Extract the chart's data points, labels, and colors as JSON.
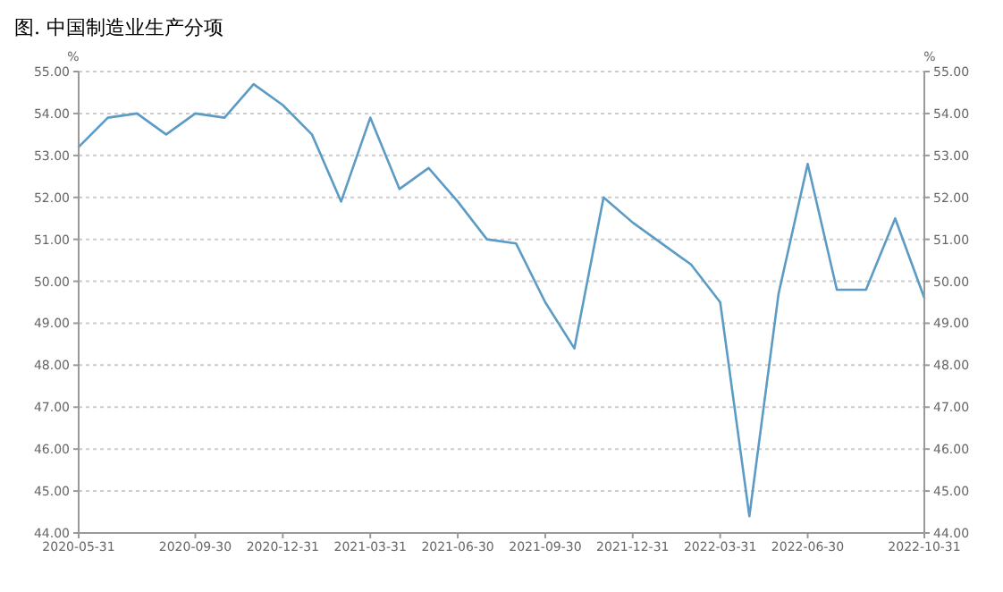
{
  "chart_data": {
    "type": "line",
    "title": "图. 中国制造业生产分项",
    "ylabel": "%",
    "y2label": "%",
    "categories": [
      "2020-05-31",
      null,
      null,
      null,
      "2020-09-30",
      null,
      null,
      "2020-12-31",
      null,
      null,
      "2021-03-31",
      null,
      null,
      "2021-06-30",
      null,
      null,
      "2021-09-30",
      null,
      null,
      "2021-12-31",
      null,
      null,
      "2022-03-31",
      null,
      null,
      "2022-06-30",
      null,
      null,
      null,
      "2022-10-31"
    ],
    "series": [
      {
        "color": "#5b9bc4",
        "values": [
          53.2,
          53.9,
          54.0,
          53.5,
          54.0,
          53.9,
          54.7,
          54.2,
          53.5,
          51.9,
          53.9,
          52.2,
          52.7,
          51.9,
          51.0,
          50.9,
          49.5,
          48.4,
          52.0,
          51.4,
          50.9,
          50.4,
          49.5,
          44.4,
          49.7,
          52.8,
          49.8,
          49.8,
          51.5,
          49.6
        ]
      }
    ],
    "ylim": [
      44,
      55
    ],
    "yticks": [
      {
        "value": 44,
        "label": "44.00"
      },
      {
        "value": 45,
        "label": "45.00"
      },
      {
        "value": 46,
        "label": "46.00"
      },
      {
        "value": 47,
        "label": "47.00"
      },
      {
        "value": 48,
        "label": "48.00"
      },
      {
        "value": 49,
        "label": "49.00"
      },
      {
        "value": 50,
        "label": "50.00"
      },
      {
        "value": 51,
        "label": "51.00"
      },
      {
        "value": 52,
        "label": "52.00"
      },
      {
        "value": 53,
        "label": "53.00"
      },
      {
        "value": 54,
        "label": "54.00"
      },
      {
        "value": 55,
        "label": "55.00"
      }
    ],
    "y2lim": [
      44,
      55
    ],
    "y2ticks": [
      {
        "value": 44,
        "label": "44.00"
      },
      {
        "value": 45,
        "label": "45.00"
      },
      {
        "value": 46,
        "label": "46.00"
      },
      {
        "value": 47,
        "label": "47.00"
      },
      {
        "value": 48,
        "label": "48.00"
      },
      {
        "value": 49,
        "label": "49.00"
      },
      {
        "value": 50,
        "label": "50.00"
      },
      {
        "value": 51,
        "label": "51.00"
      },
      {
        "value": 52,
        "label": "52.00"
      },
      {
        "value": 53,
        "label": "53.00"
      },
      {
        "value": 54,
        "label": "54.00"
      },
      {
        "value": 55,
        "label": "55.00"
      }
    ],
    "grid": "y",
    "marker": "none",
    "line_style": "solid"
  }
}
